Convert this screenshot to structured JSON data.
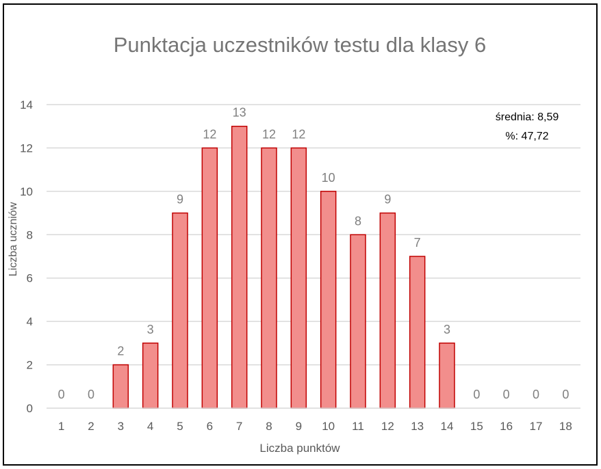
{
  "chart_data": {
    "type": "bar",
    "title": "Punktacja uczestników testu dla klasy 6",
    "xlabel": "Liczba punktów",
    "ylabel": "Liczba uczniów",
    "categories": [
      "1",
      "2",
      "3",
      "4",
      "5",
      "6",
      "7",
      "8",
      "9",
      "10",
      "11",
      "12",
      "13",
      "14",
      "15",
      "16",
      "17",
      "18"
    ],
    "values": [
      0,
      0,
      2,
      3,
      9,
      12,
      13,
      12,
      12,
      10,
      8,
      9,
      7,
      3,
      0,
      0,
      0,
      0
    ],
    "ylim": [
      0,
      14
    ],
    "yticks": [
      "0",
      "2",
      "4",
      "6",
      "8",
      "10",
      "12",
      "14"
    ],
    "grid": true,
    "bar_fill": "#f28e8c",
    "bar_stroke": "#c00000",
    "annotations": [
      "średnia: 8,59",
      "%: 47,72"
    ]
  }
}
